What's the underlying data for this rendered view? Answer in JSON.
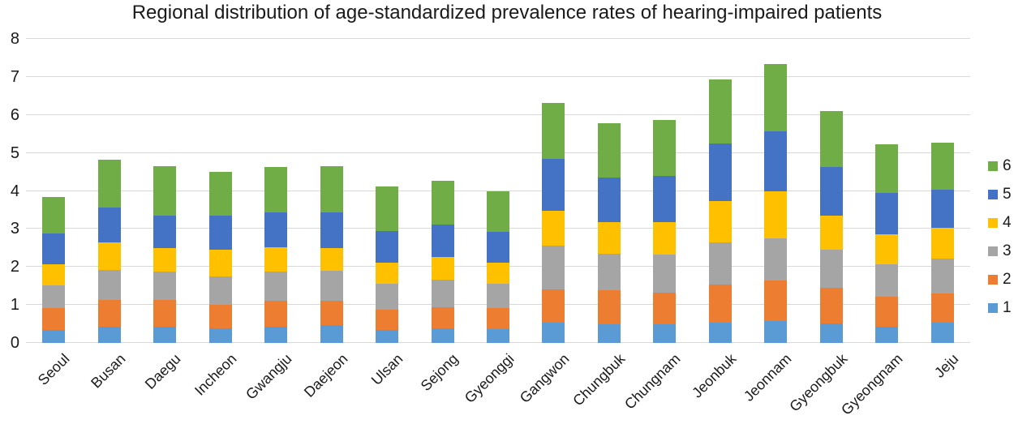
{
  "title": "Regional distribution of age-standardized prevalence rates of hearing-impaired patients",
  "chart_data": {
    "type": "bar",
    "stacked": true,
    "title": "Regional distribution of age-standardized prevalence rates of hearing-impaired patients",
    "xlabel": "",
    "ylabel": "",
    "ylim": [
      0,
      8
    ],
    "yticks": [
      0,
      1,
      2,
      3,
      4,
      5,
      6,
      7,
      8
    ],
    "grid": "horizontal",
    "gridline_color": "#d9d9d9",
    "text_color": "#1a1a1a",
    "legend_position": "right",
    "legend_order": [
      "6",
      "5",
      "4",
      "3",
      "2",
      "1"
    ],
    "categories": [
      "Seoul",
      "Busan",
      "Daegu",
      "Incheon",
      "Gwangju",
      "Daejeon",
      "Ulsan",
      "Sejong",
      "Gyeonggi",
      "Gangwon",
      "Chungbuk",
      "Chungnam",
      "Jeonbuk",
      "Jeonnam",
      "Gyeongbuk",
      "Gyeongnam",
      "Jeju"
    ],
    "series": [
      {
        "name": "1",
        "color": "#5B9BD5",
        "values": [
          0.35,
          0.42,
          0.42,
          0.38,
          0.42,
          0.46,
          0.35,
          0.38,
          0.36,
          0.53,
          0.5,
          0.49,
          0.53,
          0.57,
          0.51,
          0.42,
          0.53
        ]
      },
      {
        "name": "2",
        "color": "#ED7D31",
        "values": [
          0.57,
          0.72,
          0.72,
          0.62,
          0.7,
          0.66,
          0.53,
          0.56,
          0.56,
          0.88,
          0.88,
          0.84,
          1.0,
          1.07,
          0.95,
          0.8,
          0.78
        ]
      },
      {
        "name": "3",
        "color": "#A5A5A5",
        "values": [
          0.6,
          0.79,
          0.74,
          0.74,
          0.76,
          0.77,
          0.68,
          0.73,
          0.64,
          1.14,
          0.96,
          0.99,
          1.12,
          1.12,
          1.0,
          0.85,
          0.9
        ]
      },
      {
        "name": "4",
        "color": "#FFC000",
        "values": [
          0.55,
          0.72,
          0.62,
          0.72,
          0.64,
          0.61,
          0.56,
          0.6,
          0.55,
          0.93,
          0.84,
          0.85,
          1.08,
          1.22,
          0.9,
          0.78,
          0.82
        ]
      },
      {
        "name": "5",
        "color": "#4472C4",
        "values": [
          0.8,
          0.92,
          0.86,
          0.88,
          0.91,
          0.93,
          0.82,
          0.85,
          0.82,
          1.37,
          1.17,
          1.22,
          1.52,
          1.58,
          1.27,
          1.1,
          1.0
        ]
      },
      {
        "name": "6",
        "color": "#70AD47",
        "values": [
          0.97,
          1.26,
          1.29,
          1.17,
          1.2,
          1.23,
          1.18,
          1.15,
          1.05,
          1.47,
          1.43,
          1.47,
          1.68,
          1.77,
          1.48,
          1.28,
          1.25
        ]
      }
    ],
    "totals": [
      3.84,
      4.83,
      4.65,
      4.51,
      4.63,
      4.66,
      4.12,
      4.27,
      3.98,
      6.32,
      5.78,
      5.86,
      6.93,
      7.33,
      6.11,
      5.23,
      5.28
    ]
  }
}
